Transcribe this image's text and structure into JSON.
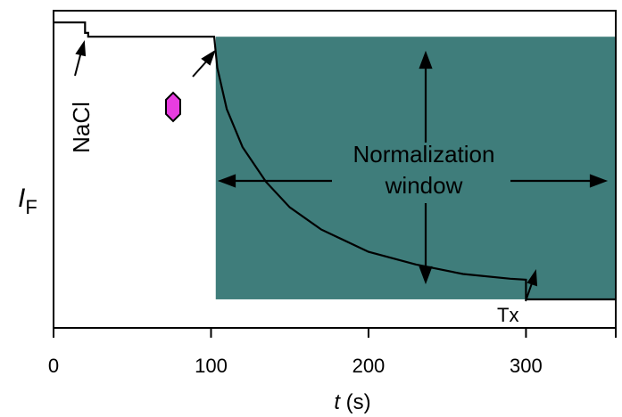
{
  "chart_data": {
    "type": "line",
    "xlabel": {
      "symbol": "t",
      "unit": " (s)"
    },
    "ylabel": {
      "symbol": "I",
      "subscript": "F"
    },
    "xlim": [
      0,
      357
    ],
    "ylim": [
      0,
      1
    ],
    "y_ticks_shown": false,
    "x_ticks": [
      0,
      100,
      200,
      300
    ],
    "x_tick_labels": [
      "0",
      "100",
      "200",
      "300"
    ],
    "grid": false,
    "legend": "none",
    "colors": {
      "trace": "#000000",
      "window_fill": "#3f7d7b",
      "hexagon_fill": "#e83de0",
      "hexagon_stroke": "#000000"
    },
    "series": [
      {
        "x": [
          0,
          20,
          20,
          22,
          22,
          102,
          104,
          110,
          120,
          135,
          150,
          170,
          200,
          230,
          260,
          290,
          300,
          300,
          357
        ],
        "y": [
          0.963,
          0.963,
          0.93,
          0.93,
          0.918,
          0.918,
          0.82,
          0.69,
          0.57,
          0.46,
          0.38,
          0.31,
          0.24,
          0.2,
          0.17,
          0.155,
          0.152,
          0.09,
          0.09
        ]
      }
    ],
    "shaded_region": {
      "x": [
        103,
        357
      ],
      "y": [
        0.09,
        0.918
      ]
    },
    "annotations": {
      "nacl": "NaCl",
      "window_line1": "Normalization",
      "window_line2": "window",
      "tx": "Tx"
    }
  }
}
